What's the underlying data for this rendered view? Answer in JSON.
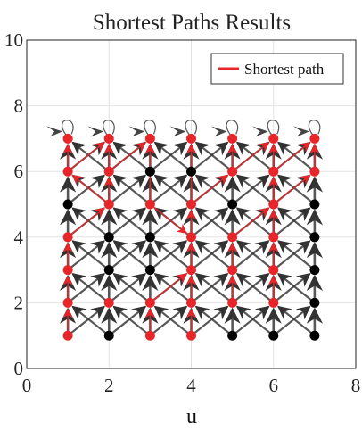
{
  "chart_data": {
    "type": "graph",
    "title": "Shortest Paths Results",
    "xlabel": "u",
    "ylabel": "",
    "xlim": [
      0,
      8
    ],
    "ylim": [
      0,
      10
    ],
    "xticks": [
      0,
      2,
      4,
      6,
      8
    ],
    "yticks": [
      0,
      2,
      4,
      6,
      8,
      10
    ],
    "grid": true,
    "legend": {
      "position": "top-right",
      "entries": [
        {
          "label": "Shortest path",
          "color": "#e8262a"
        }
      ]
    },
    "colors": {
      "path": "#e8262a",
      "node": "#000000",
      "edge": "#3a3a3a"
    },
    "node_grid": {
      "x": [
        1,
        2,
        3,
        4,
        5,
        6,
        7
      ],
      "y": [
        1,
        2,
        3,
        4,
        5,
        6,
        7
      ]
    },
    "red_nodes": [
      [
        1,
        1
      ],
      [
        1,
        2
      ],
      [
        1,
        3
      ],
      [
        1,
        4
      ],
      [
        1,
        6
      ],
      [
        1,
        7
      ],
      [
        2,
        2
      ],
      [
        2,
        5
      ],
      [
        2,
        6
      ],
      [
        2,
        7
      ],
      [
        3,
        1
      ],
      [
        3,
        2
      ],
      [
        3,
        5
      ],
      [
        3,
        7
      ],
      [
        4,
        1
      ],
      [
        4,
        2
      ],
      [
        4,
        3
      ],
      [
        4,
        4
      ],
      [
        4,
        5
      ],
      [
        4,
        7
      ],
      [
        5,
        2
      ],
      [
        5,
        3
      ],
      [
        5,
        4
      ],
      [
        5,
        6
      ],
      [
        5,
        7
      ],
      [
        6,
        2
      ],
      [
        6,
        3
      ],
      [
        6,
        4
      ],
      [
        6,
        5
      ],
      [
        6,
        6
      ],
      [
        6,
        7
      ],
      [
        7,
        6
      ],
      [
        7,
        7
      ]
    ],
    "path_edges": [
      [
        [
          1,
          1
        ],
        [
          1,
          2
        ]
      ],
      [
        [
          1,
          2
        ],
        [
          1,
          3
        ]
      ],
      [
        [
          1,
          3
        ],
        [
          1,
          4
        ]
      ],
      [
        [
          1,
          4
        ],
        [
          2,
          5
        ]
      ],
      [
        [
          1,
          6
        ],
        [
          1,
          7
        ]
      ],
      [
        [
          1,
          6
        ],
        [
          2,
          7
        ]
      ],
      [
        [
          2,
          5
        ],
        [
          2,
          6
        ]
      ],
      [
        [
          2,
          6
        ],
        [
          2,
          7
        ]
      ],
      [
        [
          2,
          6
        ],
        [
          3,
          7
        ]
      ],
      [
        [
          2,
          5
        ],
        [
          1,
          6
        ]
      ],
      [
        [
          3,
          1
        ],
        [
          3,
          2
        ]
      ],
      [
        [
          3,
          2
        ],
        [
          4,
          3
        ]
      ],
      [
        [
          3,
          5
        ],
        [
          4,
          4
        ]
      ],
      [
        [
          3,
          5
        ],
        [
          3,
          7
        ]
      ],
      [
        [
          4,
          1
        ],
        [
          4,
          2
        ]
      ],
      [
        [
          4,
          2
        ],
        [
          4,
          3
        ]
      ],
      [
        [
          4,
          3
        ],
        [
          4,
          4
        ]
      ],
      [
        [
          4,
          4
        ],
        [
          4,
          5
        ]
      ],
      [
        [
          4,
          5
        ],
        [
          4,
          7
        ]
      ],
      [
        [
          4,
          5
        ],
        [
          5,
          6
        ]
      ],
      [
        [
          5,
          2
        ],
        [
          5,
          3
        ]
      ],
      [
        [
          5,
          3
        ],
        [
          5,
          4
        ]
      ],
      [
        [
          5,
          4
        ],
        [
          6,
          5
        ]
      ],
      [
        [
          5,
          6
        ],
        [
          5,
          7
        ]
      ],
      [
        [
          5,
          6
        ],
        [
          6,
          7
        ]
      ],
      [
        [
          6,
          2
        ],
        [
          6,
          3
        ]
      ],
      [
        [
          6,
          3
        ],
        [
          6,
          4
        ]
      ],
      [
        [
          6,
          4
        ],
        [
          6,
          5
        ]
      ],
      [
        [
          6,
          5
        ],
        [
          6,
          6
        ]
      ],
      [
        [
          6,
          6
        ],
        [
          6,
          7
        ]
      ],
      [
        [
          6,
          6
        ],
        [
          7,
          7
        ]
      ],
      [
        [
          7,
          6
        ],
        [
          7,
          7
        ]
      ],
      [
        [
          6,
          5
        ],
        [
          7,
          6
        ]
      ]
    ]
  }
}
